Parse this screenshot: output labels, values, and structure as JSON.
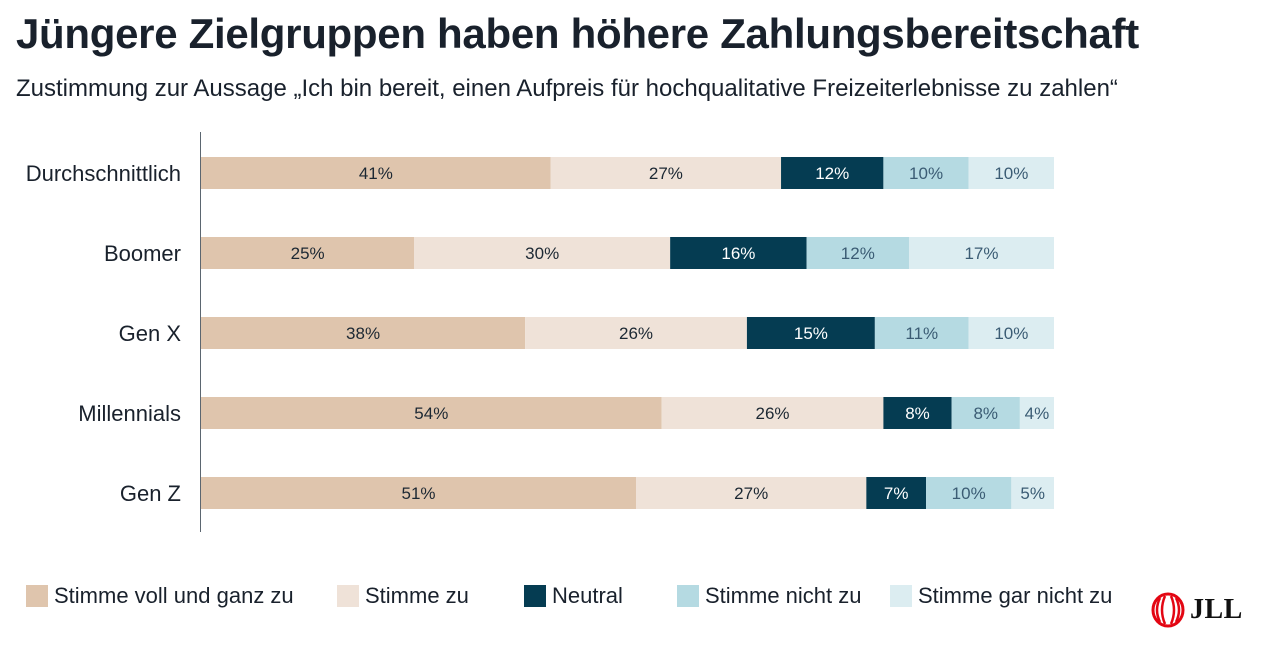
{
  "title": "Jüngere Zielgruppen haben höhere Zahlungsbereitschaft",
  "subtitle": "Zustimmung zur Aussage „Ich bin bereit, einen Aufpreis für hochqualitative Freizeiterlebnisse zu zahlen“",
  "logo": {
    "text": "JLL",
    "color": "#e30613"
  },
  "chart_data": {
    "type": "bar",
    "orientation": "horizontal",
    "stacked": true,
    "categories": [
      "Durchschnittlich",
      "Boomer",
      "Gen X",
      "Millennials",
      "Gen Z"
    ],
    "series": [
      {
        "name": "Stimme voll und ganz zu",
        "color": "#dfc5ad",
        "label_color": "#1c2833",
        "values": [
          41,
          25,
          38,
          54,
          51
        ],
        "labels": [
          "41%",
          "25%",
          "38%",
          "54%",
          "51%"
        ]
      },
      {
        "name": "Stimme zu",
        "color": "#efe2d8",
        "label_color": "#1c2833",
        "values": [
          27,
          30,
          26,
          26,
          27
        ],
        "labels": [
          "27%",
          "30%",
          "26%",
          "26%",
          "27%"
        ]
      },
      {
        "name": "Neutral",
        "color": "#053c52",
        "label_color": "#ffffff",
        "values": [
          12,
          16,
          15,
          8,
          7
        ],
        "labels": [
          "12%",
          "16%",
          "15%",
          "8%",
          "7%"
        ]
      },
      {
        "name": "Stimme nicht zu",
        "color": "#b5dae2",
        "label_color": "#3b5c74",
        "values": [
          10,
          12,
          11,
          8,
          10
        ],
        "labels": [
          "10%",
          "12%",
          "11%",
          "8%",
          "10%"
        ]
      },
      {
        "name": "Stimme gar nicht zu",
        "color": "#dcedf1",
        "label_color": "#3b5c74",
        "values": [
          10,
          17,
          10,
          4,
          5
        ],
        "labels": [
          "10%",
          "17%",
          "10%",
          "4%",
          "5%"
        ]
      }
    ],
    "xlim": [
      0,
      100
    ],
    "grid": false,
    "legend_position": "bottom"
  }
}
